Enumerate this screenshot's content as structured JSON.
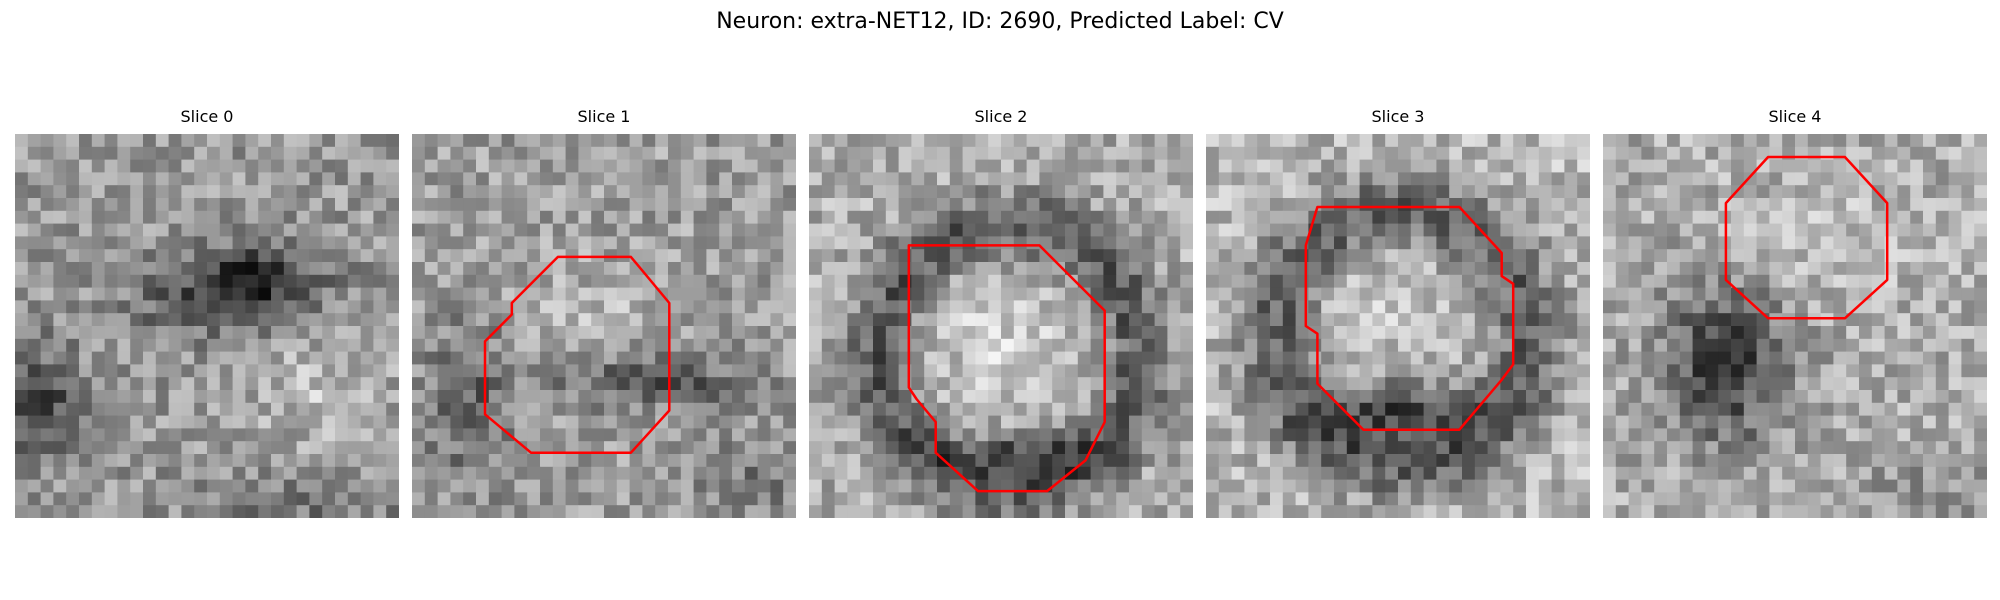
{
  "title": "Neuron: extra-NET12, ID: 2690, Predicted Label: CV",
  "panels": [
    {
      "label": "Slice 0",
      "contour": false
    },
    {
      "label": "Slice 1",
      "contour": true
    },
    {
      "label": "Slice 2",
      "contour": true
    },
    {
      "label": "Slice 3",
      "contour": true
    },
    {
      "label": "Slice 4",
      "contour": true
    }
  ],
  "image_grid": {
    "cells_per_side": 30,
    "colormap": "grayscale"
  },
  "colors": {
    "contour": "#ff0000",
    "background": "#ffffff"
  }
}
